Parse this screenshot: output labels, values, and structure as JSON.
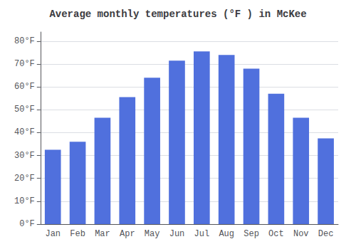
{
  "chart_data": {
    "type": "bar",
    "title": "Average monthly temperatures (°F ) in McKee",
    "categories": [
      "Jan",
      "Feb",
      "Mar",
      "Apr",
      "May",
      "Jun",
      "Jul",
      "Aug",
      "Sep",
      "Oct",
      "Nov",
      "Dec"
    ],
    "values": [
      32.5,
      36.0,
      46.5,
      55.5,
      64.0,
      71.5,
      75.5,
      74.0,
      68.0,
      57.0,
      46.5,
      37.5
    ],
    "ylim": [
      0,
      84
    ],
    "yticks": [
      {
        "value": 0,
        "label": "0°F"
      },
      {
        "value": 10,
        "label": "10°F"
      },
      {
        "value": 20,
        "label": "20°F"
      },
      {
        "value": 30,
        "label": "30°F"
      },
      {
        "value": 40,
        "label": "40°F"
      },
      {
        "value": 50,
        "label": "50°F"
      },
      {
        "value": 60,
        "label": "60°F"
      },
      {
        "value": 70,
        "label": "70°F"
      },
      {
        "value": 80,
        "label": "80°F"
      }
    ],
    "grid": true
  }
}
